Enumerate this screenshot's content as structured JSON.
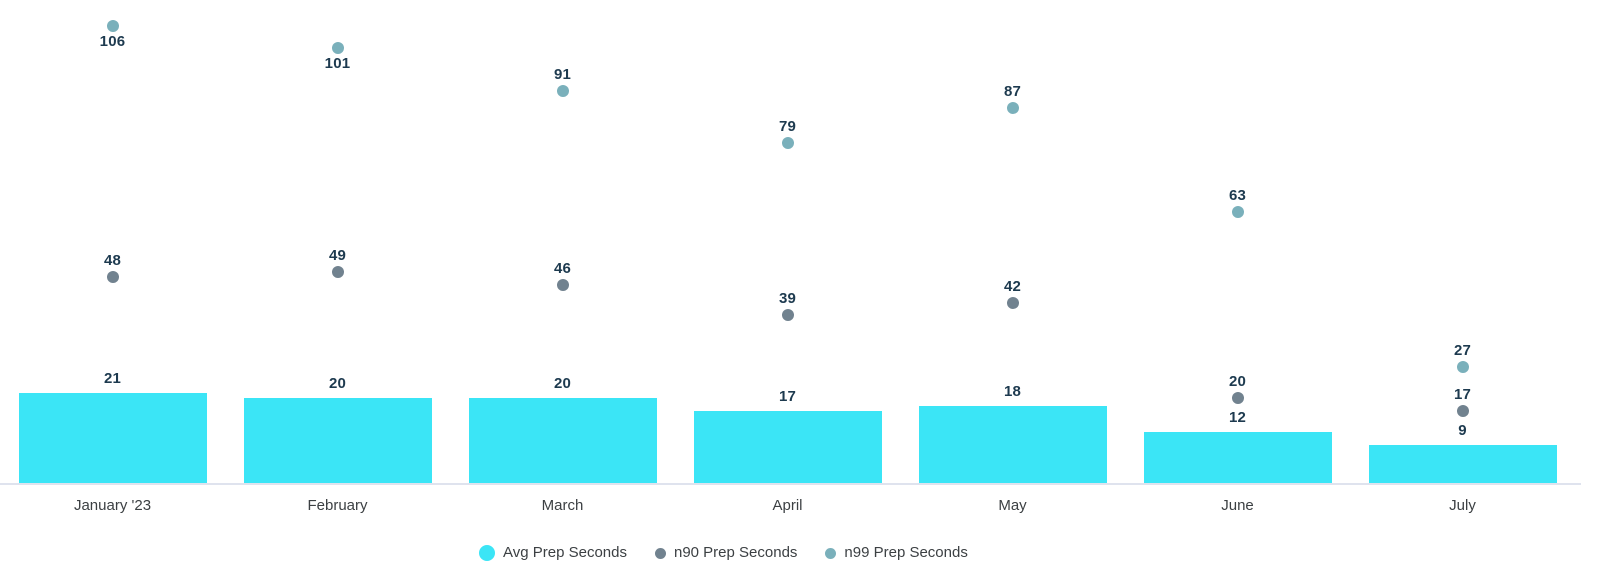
{
  "chart_data": {
    "type": "bar",
    "title": "",
    "categories": [
      "January '23",
      "February",
      "March",
      "April",
      "May",
      "June",
      "July"
    ],
    "series": [
      {
        "name": "Avg Prep Seconds",
        "type": "bar",
        "color": "#3BE5F6",
        "values": [
          21,
          20,
          20,
          17,
          18,
          12,
          9
        ]
      },
      {
        "name": "n90 Prep Seconds",
        "type": "scatter",
        "color": "#71828F",
        "values": [
          48,
          49,
          46,
          39,
          42,
          20,
          17
        ]
      },
      {
        "name": "n99 Prep Seconds",
        "type": "scatter",
        "color": "#7AB0BB",
        "values": [
          106,
          101,
          91,
          79,
          87,
          63,
          27
        ]
      }
    ],
    "ylim": [
      0,
      112
    ],
    "xlabel": "",
    "ylabel": "",
    "grid": false,
    "data_labels": true,
    "legend_position": "bottom",
    "colors": {
      "data_label": "#1D3A4F",
      "axis_text": "#3C4043",
      "axis_line": "#DFE3EE",
      "background": "#FFFFFF"
    }
  }
}
